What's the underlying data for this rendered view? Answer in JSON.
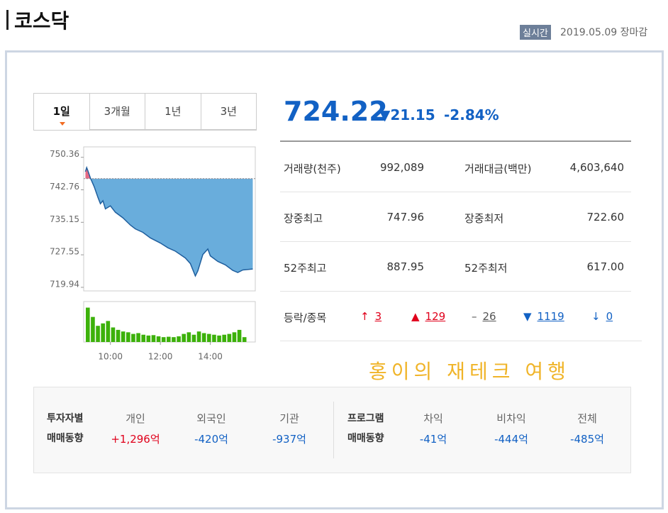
{
  "header": {
    "title": "코스닥",
    "badge": "실시간",
    "date": "2019.05.09 장마감"
  },
  "tabs": [
    "1일",
    "3개월",
    "1년",
    "3년"
  ],
  "mini_chart": {
    "type": "line",
    "x": [
      9.0,
      9.05,
      9.1,
      9.2,
      9.35,
      9.5,
      9.6,
      9.7,
      9.8,
      10.0,
      10.2,
      10.5,
      10.8,
      11.0,
      11.3,
      11.6,
      12.0,
      12.3,
      12.6,
      13.0,
      13.2,
      13.4,
      13.5,
      13.7,
      13.9,
      14.0,
      14.3,
      14.6,
      14.9,
      15.1,
      15.3,
      15.7
    ],
    "values": [
      747.0,
      747.96,
      747.2,
      745.5,
      743.5,
      741.0,
      739.5,
      740.2,
      738.3,
      739.0,
      737.5,
      736.2,
      734.5,
      733.6,
      732.8,
      731.5,
      730.3,
      729.2,
      728.4,
      726.8,
      725.5,
      722.6,
      723.8,
      727.6,
      728.9,
      727.3,
      726.0,
      725.2,
      723.9,
      723.4,
      724.0,
      724.22
    ],
    "reference": 745.37,
    "color": "#1f5f9e",
    "fill_below": "#4f9fd6",
    "fill_above": "#e0506e",
    "xlim": [
      8.93,
      15.8
    ],
    "ylim": [
      719.1,
      752.8
    ],
    "yticks": [
      750.36,
      742.76,
      735.15,
      727.55,
      719.94
    ],
    "xticks": [
      {
        "value": 10,
        "label": "10:00"
      },
      {
        "value": 12,
        "label": "12:00"
      },
      {
        "value": 14,
        "label": "14:00"
      }
    ]
  },
  "volume": {
    "values": [
      85,
      62,
      40,
      46,
      52,
      36,
      30,
      26,
      24,
      20,
      22,
      18,
      16,
      17,
      14,
      12,
      13,
      12,
      14,
      20,
      24,
      18,
      26,
      22,
      20,
      18,
      16,
      18,
      20,
      24,
      30,
      12
    ],
    "ylim": [
      0,
      100
    ],
    "color": "#3cb10a"
  },
  "quote": {
    "price": "724.22",
    "change": "▼21.15",
    "change_pct": "-2.84%"
  },
  "stats": [
    [
      "거래량(천주)",
      "992,089",
      "거래대금(백만)",
      "4,603,640"
    ],
    [
      "장중최고",
      "747.96",
      "장중최저",
      "722.60"
    ],
    [
      "52주최고",
      "887.95",
      "52주최저",
      "617.00"
    ]
  ],
  "advance_decline": {
    "label": "등락/종목",
    "items": [
      {
        "symbol": "↑",
        "count": "3",
        "color": "#e0001b"
      },
      {
        "symbol": "▲",
        "count": "129",
        "color": "#e0001b"
      },
      {
        "symbol": "–",
        "count": "26",
        "color": "#555555"
      },
      {
        "symbol": "▼",
        "count": "1119",
        "color": "#1261c4"
      },
      {
        "symbol": "↓",
        "count": "0",
        "color": "#1261c4"
      }
    ]
  },
  "watermark": "홍이의 재테크 여행",
  "investors": {
    "label": [
      "투자자별",
      "매매동향"
    ],
    "items": [
      {
        "name": "개인",
        "value": "+1,296억",
        "color": "#e0001b"
      },
      {
        "name": "외국인",
        "value": "-420억",
        "color": "#1261c4"
      },
      {
        "name": "기관",
        "value": "-937억",
        "color": "#1261c4"
      }
    ]
  },
  "program": {
    "label": [
      "프로그램",
      "매매동향"
    ],
    "items": [
      {
        "name": "차익",
        "value": "-41억",
        "color": "#1261c4"
      },
      {
        "name": "비차익",
        "value": "-444억",
        "color": "#1261c4"
      },
      {
        "name": "전체",
        "value": "-485억",
        "color": "#1261c4"
      }
    ]
  }
}
